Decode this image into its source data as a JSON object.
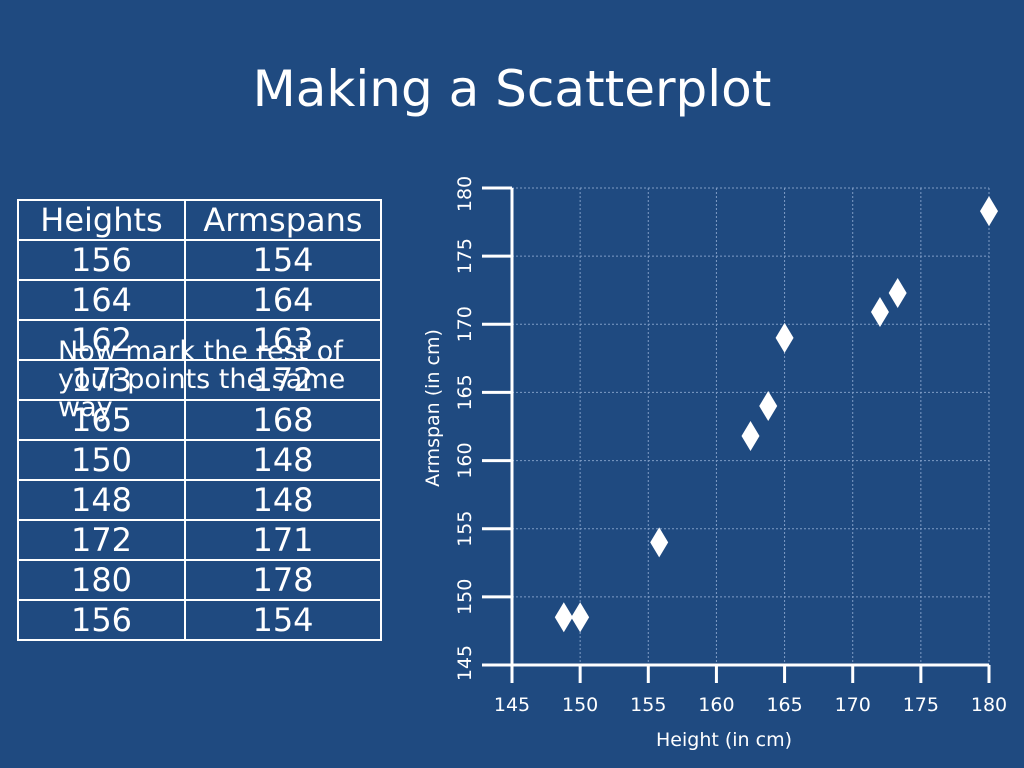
{
  "slide": {
    "title": "Making a Scatterplot",
    "note": "Now mark the rest of your points the same way"
  },
  "table": {
    "headers": [
      "Heights",
      "Armspans"
    ],
    "rows": [
      [
        "156",
        "154"
      ],
      [
        "164",
        "164"
      ],
      [
        "162",
        "163"
      ],
      [
        "173",
        "172"
      ],
      [
        "165",
        "168"
      ],
      [
        "150",
        "148"
      ],
      [
        "148",
        "148"
      ],
      [
        "172",
        "171"
      ],
      [
        "180",
        "178"
      ],
      [
        "156",
        "154"
      ]
    ]
  },
  "colors": {
    "background": "#1f4a80",
    "foreground": "#ffffff",
    "grid": "#7f9cc5"
  },
  "chart_data": {
    "type": "scatter",
    "xlabel": "Height (in cm)",
    "ylabel": "Armspan (in cm)",
    "xlim": [
      145,
      180
    ],
    "ylim": [
      145,
      180
    ],
    "xticks": [
      145,
      150,
      155,
      160,
      165,
      170,
      175,
      180
    ],
    "yticks": [
      145,
      150,
      155,
      160,
      165,
      170,
      175,
      180
    ],
    "grid": true,
    "marker": "diamond",
    "points": [
      {
        "x": 148.8,
        "y": 148.5
      },
      {
        "x": 150.0,
        "y": 148.5
      },
      {
        "x": 155.8,
        "y": 154.0
      },
      {
        "x": 162.5,
        "y": 161.8
      },
      {
        "x": 163.8,
        "y": 164.0
      },
      {
        "x": 165.0,
        "y": 169.0
      },
      {
        "x": 172.0,
        "y": 170.9
      },
      {
        "x": 173.3,
        "y": 172.3
      },
      {
        "x": 180.0,
        "y": 178.3
      }
    ]
  }
}
